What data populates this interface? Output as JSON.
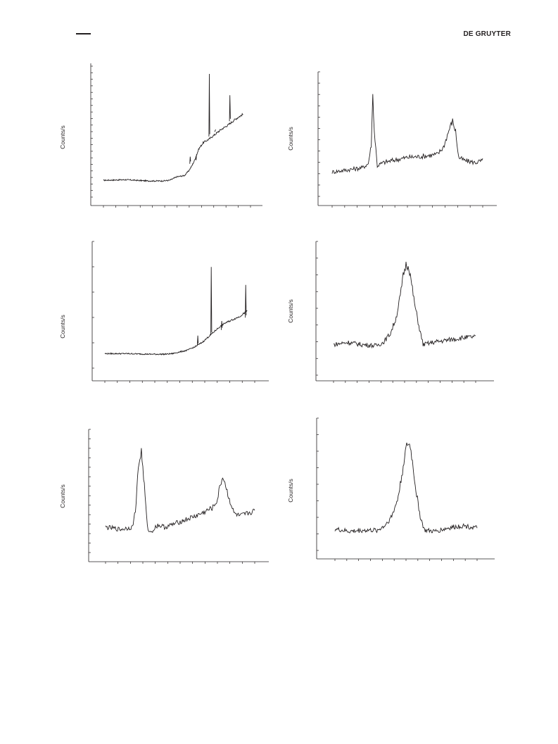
{
  "header": {
    "publisher": "DE GRUYTER"
  },
  "colors": {
    "ink": "#231f20",
    "background": "#ffffff"
  },
  "panels": [
    {
      "id": "a",
      "ylabel": "Counts/s",
      "ticks": {
        "x": 13,
        "y": 21
      }
    },
    {
      "id": "b",
      "ylabel": "Counts/s",
      "ticks": {
        "x": 13,
        "y": 12
      }
    },
    {
      "id": "c",
      "ylabel": "Counts/s",
      "ticks": {
        "x": 13,
        "y": 6
      }
    },
    {
      "id": "d",
      "ylabel": "Counts/s",
      "ticks": {
        "x": 13,
        "y": 9
      }
    },
    {
      "id": "e",
      "ylabel": "Counts/s",
      "ticks": {
        "x": 13,
        "y": 14
      }
    },
    {
      "id": "f",
      "ylabel": "Counts/s",
      "ticks": {
        "x": 13,
        "y": 9
      }
    }
  ],
  "chart_data": [
    {
      "type": "line",
      "title": "",
      "xlabel": "",
      "ylabel": "Counts/s",
      "xlim": [
        0,
        100
      ],
      "ylim": [
        0,
        100
      ],
      "grid": false,
      "series": [
        {
          "x": [
            0,
            15,
            30,
            40,
            45,
            50,
            55,
            58,
            60,
            62,
            65,
            68,
            72,
            75,
            80,
            85,
            90,
            95
          ],
          "values": [
            10,
            10.5,
            9.5,
            9.5,
            10,
            13,
            14,
            18,
            22,
            27,
            37,
            42,
            45,
            48,
            53,
            57,
            62,
            66
          ]
        }
      ]
    },
    {
      "type": "line",
      "title": "",
      "xlabel": "",
      "ylabel": "Counts/s",
      "xlim": [
        0,
        100
      ],
      "ylim": [
        0,
        100
      ],
      "grid": false,
      "series": [
        {
          "x": [
            0,
            10,
            20,
            24,
            26,
            27,
            28,
            30,
            34,
            40,
            50,
            60,
            70,
            74,
            78,
            80,
            82,
            84,
            88,
            95,
            100
          ],
          "values": [
            16,
            18,
            20,
            24,
            42,
            90,
            55,
            22,
            25,
            27,
            30,
            31,
            33,
            40,
            58,
            65,
            55,
            30,
            27,
            25,
            27
          ]
        }
      ]
    },
    {
      "type": "line",
      "title": "",
      "xlabel": "",
      "ylabel": "Counts/s",
      "xlim": [
        0,
        100
      ],
      "ylim": [
        0,
        100
      ],
      "grid": false,
      "series": [
        {
          "x": [
            0,
            15,
            30,
            40,
            45,
            50,
            55,
            60,
            65,
            70,
            75,
            80,
            85,
            90,
            95
          ],
          "values": [
            11,
            11,
            10.5,
            10.5,
            11,
            12.5,
            14,
            17,
            21,
            27,
            33,
            38,
            41,
            44,
            49
          ]
        }
      ]
    },
    {
      "type": "line",
      "title": "",
      "xlabel": "",
      "ylabel": "Counts/s",
      "xlim": [
        0,
        100
      ],
      "ylim": [
        0,
        100
      ],
      "grid": false,
      "series": [
        {
          "x": [
            0,
            10,
            20,
            30,
            35,
            40,
            44,
            47,
            49,
            51,
            53,
            55,
            57,
            60,
            63,
            70,
            80,
            90,
            100
          ],
          "values": [
            18,
            20,
            18,
            17,
            20,
            28,
            42,
            62,
            80,
            90,
            88,
            72,
            55,
            35,
            18,
            20,
            22,
            24,
            25
          ]
        }
      ]
    },
    {
      "type": "line",
      "title": "",
      "xlabel": "",
      "ylabel": "Counts/s",
      "xlim": [
        0,
        100
      ],
      "ylim": [
        0,
        100
      ],
      "grid": false,
      "series": [
        {
          "x": [
            0,
            10,
            18,
            20,
            22,
            24,
            26,
            28,
            30,
            35,
            40,
            50,
            60,
            65,
            72,
            75,
            77,
            79,
            82,
            86,
            90,
            100
          ],
          "values": [
            20,
            18,
            20,
            35,
            75,
            90,
            58,
            20,
            15,
            22,
            20,
            25,
            30,
            33,
            38,
            45,
            60,
            66,
            50,
            33,
            30,
            35
          ]
        }
      ]
    },
    {
      "type": "line",
      "title": "",
      "xlabel": "",
      "ylabel": "Counts/s",
      "xlim": [
        0,
        100
      ],
      "ylim": [
        0,
        100
      ],
      "grid": false,
      "series": [
        {
          "x": [
            0,
            10,
            20,
            30,
            35,
            40,
            44,
            47,
            49,
            51,
            53,
            55,
            57,
            60,
            63,
            70,
            80,
            90,
            100
          ],
          "values": [
            17,
            15,
            16,
            16,
            20,
            28,
            42,
            62,
            80,
            90,
            88,
            70,
            50,
            28,
            16,
            15,
            18,
            20,
            18
          ]
        }
      ]
    }
  ]
}
